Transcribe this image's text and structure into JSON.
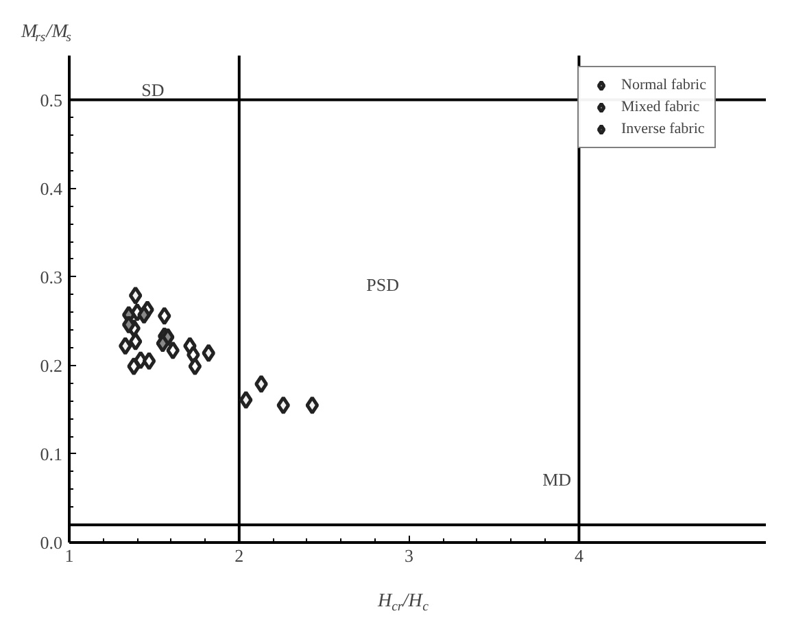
{
  "chart_data": {
    "type": "scatter",
    "xlabel": "H$_{cr}$/H$_{c}$",
    "ylabel": "M$_{rs}$/M$_{s}$",
    "xlim": [
      1,
      5.1
    ],
    "ylim": [
      0,
      0.55
    ],
    "xticks": [
      1,
      2,
      3,
      4
    ],
    "yticks": [
      {
        "value": 0,
        "label": "0.0"
      },
      0.1,
      0.2,
      0.3,
      0.4,
      0.5
    ],
    "marker": "diamond",
    "legend": "top right",
    "grid": false,
    "series": [
      {
        "name": "Normal fabric",
        "color": "#ffffff",
        "x": [
          1.4,
          1.46,
          1.56,
          1.38,
          1.61,
          1.71,
          1.73,
          1.74,
          1.38,
          1.42,
          1.47,
          1.39
        ],
        "values": [
          0.26,
          0.263,
          0.256,
          0.242,
          0.217,
          0.222,
          0.212,
          0.199,
          0.199,
          0.206,
          0.205,
          0.227
        ]
      },
      {
        "name": "Mixed fabric",
        "color": "#f0f0f0",
        "x": [
          1.39,
          1.82,
          1.33,
          2.04,
          2.13,
          2.26,
          2.43
        ],
        "values": [
          0.279,
          0.214,
          0.222,
          0.161,
          0.179,
          0.155,
          0.155
        ]
      },
      {
        "name": "Inverse fabric",
        "color": "#888888",
        "x": [
          1.35,
          1.44,
          1.35,
          1.56,
          1.58,
          1.55
        ],
        "values": [
          0.257,
          0.257,
          0.246,
          0.233,
          0.232,
          0.225
        ]
      }
    ],
    "ref_lines": [
      {
        "axis": "x",
        "value": 2,
        "label": null
      },
      {
        "axis": "x",
        "value": 4,
        "label": null
      },
      {
        "axis": "y",
        "value": 0.5,
        "label": null
      },
      {
        "axis": "y",
        "value": 0.02,
        "label": null
      }
    ],
    "annotations": [
      "SD",
      "PSD",
      "MD"
    ]
  }
}
